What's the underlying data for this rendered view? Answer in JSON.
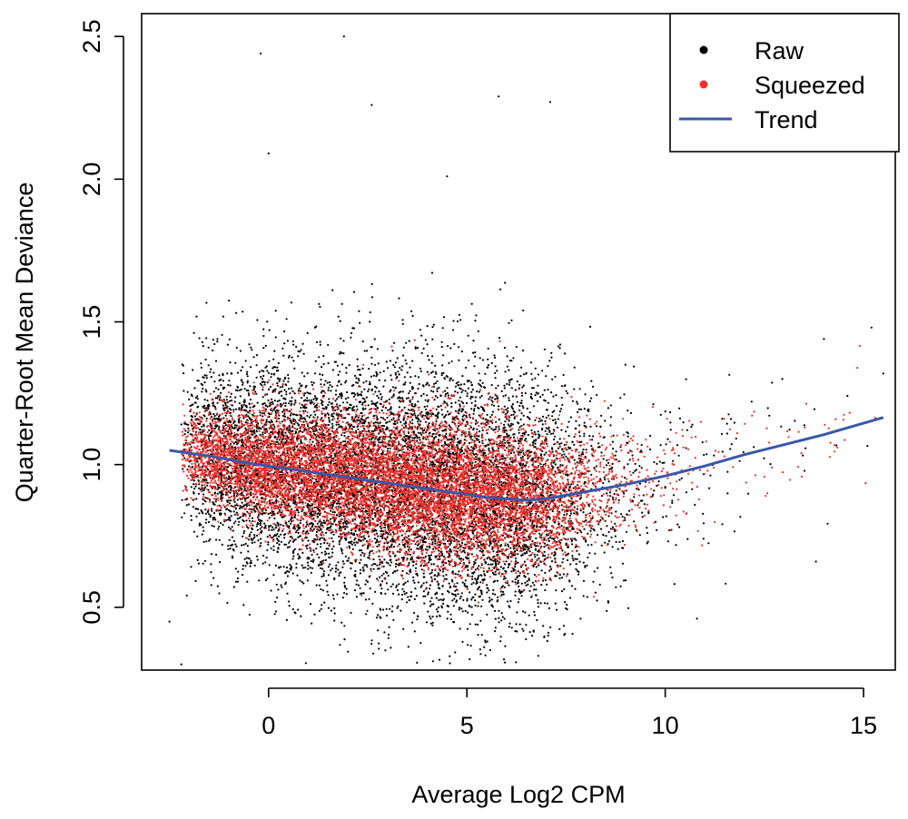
{
  "chart_data": {
    "type": "scatter",
    "title": "",
    "xlabel": "Average Log2 CPM",
    "ylabel": "Quarter-Root Mean Deviance",
    "xlim": [
      -3.2,
      15.8
    ],
    "ylim": [
      0.28,
      2.58
    ],
    "x_ticks": [
      0,
      5,
      10,
      15
    ],
    "x_tick_labels": [
      "0",
      "5",
      "10",
      "15"
    ],
    "y_ticks": [
      0.5,
      1.0,
      1.5,
      2.0,
      2.5
    ],
    "y_tick_labels": [
      "0.5",
      "1.0",
      "1.5",
      "2.0",
      "2.5"
    ],
    "grid": false,
    "legend_position": "top-right",
    "legend": [
      {
        "label": "Raw",
        "color": "#000000",
        "kind": "point"
      },
      {
        "label": "Squeezed",
        "color": "#f0302a",
        "kind": "point"
      },
      {
        "label": "Trend",
        "color": "#3b57a8",
        "kind": "line"
      }
    ],
    "series": [
      {
        "name": "Raw",
        "color": "#000000",
        "note_points": "approximately 15000 points forming a cloud; centers follow trend, spread shown by sd",
        "density_profile": {
          "x": [
            -2.2,
            -1.5,
            -0.5,
            0.5,
            1.5,
            2.5,
            3.5,
            4.5,
            5.5,
            6.5,
            7.5,
            8.5,
            9.5,
            10.5,
            11.5,
            12.5,
            13.5,
            14.5,
            15.5
          ],
          "relative_density": [
            0.15,
            0.6,
            0.75,
            0.8,
            0.85,
            0.9,
            0.95,
            1.0,
            0.95,
            0.75,
            0.4,
            0.15,
            0.05,
            0.03,
            0.02,
            0.015,
            0.01,
            0.008,
            0.005
          ],
          "sd": [
            0.14,
            0.17,
            0.18,
            0.19,
            0.2,
            0.21,
            0.22,
            0.23,
            0.23,
            0.22,
            0.2,
            0.18,
            0.17,
            0.17,
            0.17,
            0.17,
            0.17,
            0.17,
            0.17
          ]
        },
        "outliers": [
          {
            "x": 1.9,
            "y": 2.5
          },
          {
            "x": -0.2,
            "y": 2.44
          },
          {
            "x": 5.8,
            "y": 2.29
          },
          {
            "x": 7.1,
            "y": 2.27
          },
          {
            "x": 2.6,
            "y": 2.26
          },
          {
            "x": 0.0,
            "y": 2.09
          },
          {
            "x": 4.5,
            "y": 2.01
          },
          {
            "x": -2.2,
            "y": 0.3
          },
          {
            "x": -2.5,
            "y": 0.45
          },
          {
            "x": 14.0,
            "y": 1.44
          },
          {
            "x": 15.2,
            "y": 1.48
          },
          {
            "x": 13.8,
            "y": 0.66
          },
          {
            "x": 10.8,
            "y": 0.46
          },
          {
            "x": 6.8,
            "y": 0.33
          }
        ]
      },
      {
        "name": "Squeezed",
        "color": "#f0302a",
        "note_points": "approximately 15000 points concentrated near the trend",
        "density_profile": {
          "x": [
            -2.2,
            -1.5,
            -0.5,
            0.5,
            1.5,
            2.5,
            3.5,
            4.5,
            5.5,
            6.5,
            7.5,
            8.5,
            9.5,
            10.5,
            11.5,
            12.5,
            13.5,
            14.5,
            15.5
          ],
          "relative_density": [
            0.15,
            0.6,
            0.75,
            0.8,
            0.85,
            0.9,
            0.95,
            1.0,
            0.95,
            0.75,
            0.4,
            0.15,
            0.05,
            0.03,
            0.02,
            0.015,
            0.01,
            0.008,
            0.005
          ],
          "sd": [
            0.07,
            0.08,
            0.09,
            0.1,
            0.1,
            0.11,
            0.12,
            0.13,
            0.13,
            0.12,
            0.11,
            0.1,
            0.1,
            0.1,
            0.1,
            0.1,
            0.1,
            0.1,
            0.1
          ]
        }
      },
      {
        "name": "Trend",
        "color": "#3b57a8",
        "x": [
          -2.5,
          -1.5,
          -0.5,
          0.5,
          1.5,
          2.5,
          3.5,
          4.5,
          5.5,
          6.5,
          7.0,
          8.0,
          9.0,
          10.0,
          11.0,
          12.0,
          13.0,
          14.0,
          15.0,
          15.5
        ],
        "y": [
          1.05,
          1.03,
          1.005,
          0.985,
          0.965,
          0.945,
          0.925,
          0.905,
          0.885,
          0.875,
          0.88,
          0.905,
          0.93,
          0.96,
          0.995,
          1.035,
          1.07,
          1.105,
          1.145,
          1.165
        ]
      }
    ]
  }
}
